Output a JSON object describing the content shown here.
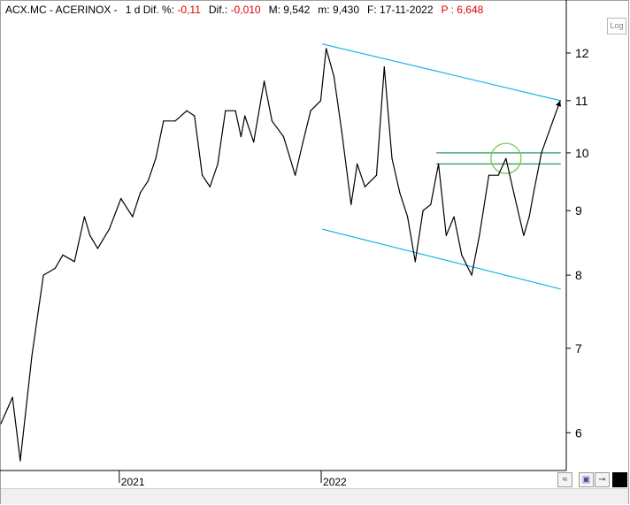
{
  "header": {
    "ticker": "ACX.MC - ACERINOX -",
    "period": "1 d",
    "dif_pct_label": "Dif. %:",
    "dif_pct_value": "-0,11",
    "dif_label": "Dif.:",
    "dif_value": "-0,010",
    "max_label": "M: 9,542",
    "min_label": "m: 9,430",
    "date_label": "F: 17-11-2022",
    "p_label": "P : 6,648"
  },
  "log_button_label": "Log",
  "colors": {
    "price": "#000000",
    "channel": "#1eb4e6",
    "levels": "#2a9a5a",
    "circle": "#7ac850",
    "text": "#000000",
    "negative": "#e00000"
  },
  "chart_data": {
    "type": "line",
    "title": "",
    "xlabel": "",
    "ylabel": "",
    "scale": "log",
    "ylim": [
      5.6,
      12.8
    ],
    "y_ticks": [
      6,
      7,
      8,
      9,
      10,
      11,
      12
    ],
    "x_ticks": [
      "2021",
      "2022"
    ],
    "xlim": [
      "2020-06-01",
      "2023-03-20"
    ],
    "grid": false,
    "series": [
      {
        "x": [
          "2020-06-01",
          "2020-06-22",
          "2020-07-06",
          "2020-07-27",
          "2020-08-17",
          "2020-09-07",
          "2020-09-21",
          "2020-10-12",
          "2020-10-30",
          "2020-11-09",
          "2020-11-23",
          "2020-12-14",
          "2021-01-04",
          "2021-01-25",
          "2021-02-08",
          "2021-02-22",
          "2021-03-08",
          "2021-03-22",
          "2021-04-12",
          "2021-05-03",
          "2021-05-17",
          "2021-05-31",
          "2021-06-14",
          "2021-06-28",
          "2021-07-12",
          "2021-07-30",
          "2021-08-09",
          "2021-08-16",
          "2021-09-01",
          "2021-09-20",
          "2021-10-04",
          "2021-10-25",
          "2021-11-15",
          "2021-11-29",
          "2021-12-13",
          "2021-12-31",
          "2022-01-10",
          "2022-01-24",
          "2022-02-07",
          "2022-02-24",
          "2022-03-07",
          "2022-03-21",
          "2022-04-11",
          "2022-04-25",
          "2022-05-09",
          "2022-05-23",
          "2022-06-06",
          "2022-06-20",
          "2022-07-04",
          "2022-07-18",
          "2022-08-01",
          "2022-08-15",
          "2022-08-29",
          "2022-09-12",
          "2022-09-30",
          "2022-10-14",
          "2022-10-31",
          "2022-11-17"
        ],
        "y": [
          6.1,
          6.4,
          5.7,
          6.9,
          8.0,
          8.1,
          8.3,
          8.2,
          8.9,
          8.6,
          8.4,
          8.7,
          9.2,
          8.9,
          9.3,
          9.5,
          9.9,
          10.6,
          10.6,
          10.8,
          10.7,
          9.6,
          9.4,
          9.8,
          10.8,
          10.8,
          10.3,
          10.7,
          10.2,
          11.4,
          10.6,
          10.3,
          9.6,
          10.2,
          10.8,
          11.0,
          12.1,
          11.5,
          10.4,
          9.1,
          9.8,
          9.4,
          9.6,
          11.7,
          9.9,
          9.3,
          8.9,
          8.2,
          9.0,
          9.1,
          9.8,
          8.6,
          8.9,
          8.3,
          8.0,
          8.6,
          9.6,
          9.6
        ]
      },
      {
        "name": "",
        "x": [
          "2022-11-17",
          "2022-12-01",
          "2022-12-15",
          "2023-01-02",
          "2023-01-12",
          "2023-01-20",
          "2023-02-03",
          "2023-02-17",
          "2023-03-09"
        ],
        "y": [
          9.6,
          9.9,
          9.3,
          8.6,
          8.9,
          9.3,
          10.0,
          10.4,
          11.0
        ]
      }
    ],
    "channel": {
      "upper": {
        "x": [
          "2022-01-03",
          "2023-03-10"
        ],
        "y": [
          12.2,
          11.0
        ]
      },
      "lower": {
        "x": [
          "2022-01-03",
          "2023-03-10"
        ],
        "y": [
          8.7,
          7.8
        ]
      }
    },
    "levels": [
      {
        "y": 10.0,
        "x": [
          "2022-07-28",
          "2023-03-10"
        ]
      },
      {
        "y": 9.8,
        "x": [
          "2022-07-28",
          "2023-03-10"
        ]
      }
    ],
    "highlight": {
      "x": "2022-12-01",
      "y": 9.9
    }
  }
}
